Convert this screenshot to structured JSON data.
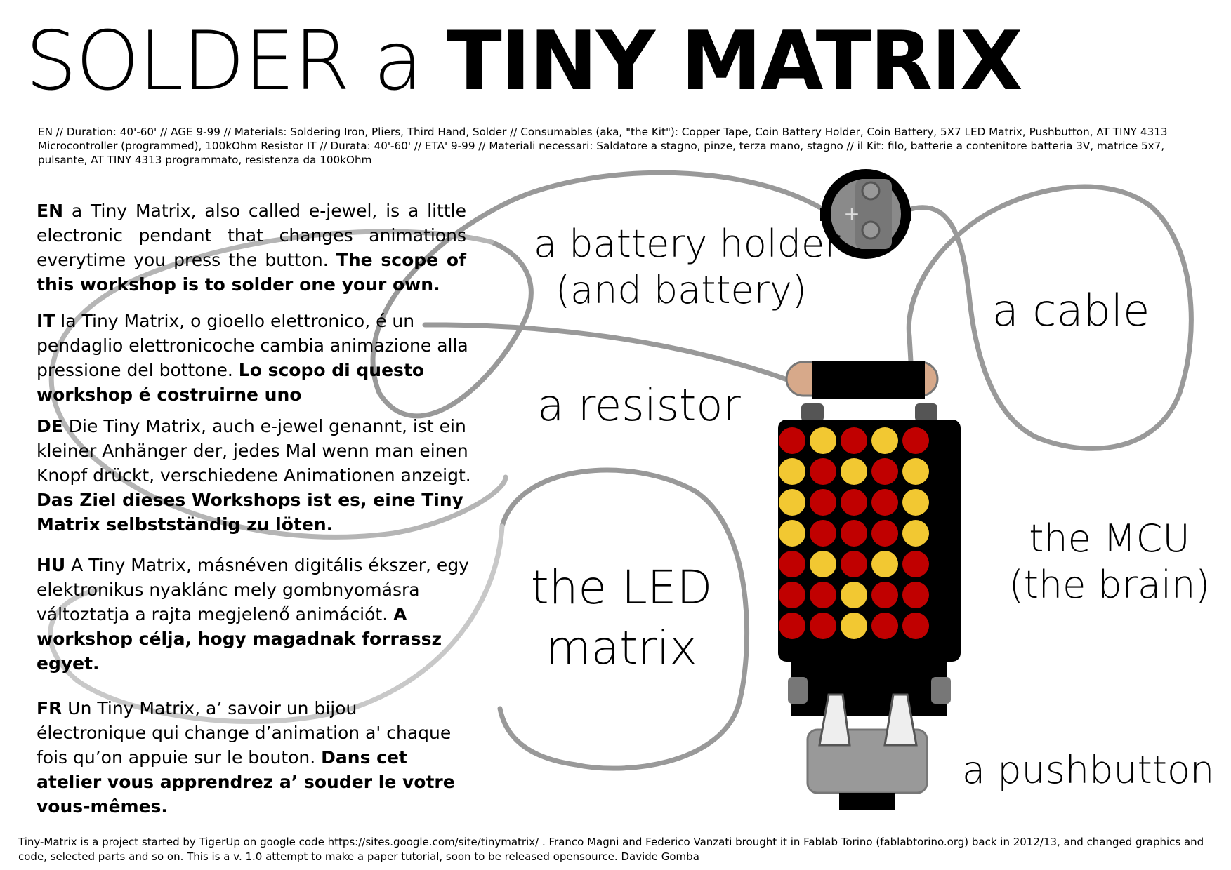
{
  "title": {
    "light": "SOLDER a ",
    "bold": "TINY MATRIX"
  },
  "meta": "EN // Duration:  40'-60' // AGE 9-99 // Materials: Soldering Iron, Pliers, Third Hand, Solder // Consumables (aka, \"the Kit\"): Copper Tape, Coin Battery Holder, Coin Battery,  5X7 LED Matrix,  Pushbutton, AT TINY 4313 Microcontroller (programmed), 100kOhm Resistor IT // Durata: 40'-60' // ETA' 9-99  // Materiali necessari: Saldatore a stagno, pinze, terza mano, stagno // il Kit: filo, batterie a contenitore batteria 3V, matrice 5x7, pulsante, AT TINY 4313 programmato, resistenza da 100kOhm",
  "paragraphs": {
    "en": {
      "lang": "EN",
      "text": " a Tiny Matrix, also called e-jewel, is a little electronic pendant that changes animations everytime you press the button. ",
      "bold": "The scope of this workshop is to solder one your own."
    },
    "it": {
      "lang": "IT",
      "text": " la Tiny Matrix, o gioello elettronico, é un pendaglio elettronicoche cambia animazione alla pressione del bottone. ",
      "bold": "Lo scopo di questo workshop é costruirne uno"
    },
    "de": {
      "lang": "DE",
      "text": " Die Tiny Matrix, auch e-jewel genannt, ist ein kleiner Anhänger der, jedes Mal wenn man einen Knopf drückt, verschiedene Animationen anzeigt. ",
      "bold": "Das Ziel dieses Workshops ist es, eine Tiny Matrix selbstständig zu löten."
    },
    "hu": {
      "lang": "HU",
      "text": " A Tiny Matrix, másnéven digitális ékszer, egy elektronikus nyaklánc mely gombnyomásra változtatja a rajta megjelenő animációt. ",
      "bold": "A workshop célja, hogy magadnak forrassz egyet."
    },
    "fr": {
      "lang": "FR",
      "text": " Un Tiny Matrix, a’ savoir un bijou électronique qui change d’animation a' chaque fois qu’on appuie sur le bouton. ",
      "bold": "Dans cet atelier vous apprendrez a’ souder le votre vous-mêmes."
    }
  },
  "labels": {
    "battery_1": "a battery holder",
    "battery_2": "(and battery)",
    "cable": "a cable",
    "resistor": "a resistor",
    "led_1": "the LED",
    "led_2": "matrix",
    "mcu_1": "the MCU",
    "mcu_2": "(the brain)",
    "pushbutton": "a pushbutton"
  },
  "battery_plus": "+",
  "footer": "Tiny-Matrix  is a project started by TigerUp on google code https://sites.google.com/site/tinymatrix/ . Franco Magni and Federico Vanzati  brought it in Fablab Torino (fablabtorino.org) back in 2012/13, and changed graphics and code, selected parts and so on. This is a v. 1.0 attempt to make a paper tutorial, soon to be released opensource. Davide Gomba",
  "colors": {
    "led_red": "#c00000",
    "led_yellow": "#f2c832",
    "cable": "#999999",
    "board": "#000000"
  },
  "matrix": {
    "rows": [
      [
        "R",
        "Y",
        "R",
        "Y",
        "R"
      ],
      [
        "Y",
        "R",
        "Y",
        "R",
        "Y"
      ],
      [
        "Y",
        "R",
        "R",
        "R",
        "Y"
      ],
      [
        "Y",
        "R",
        "R",
        "R",
        "Y"
      ],
      [
        "R",
        "Y",
        "R",
        "Y",
        "R"
      ],
      [
        "R",
        "R",
        "Y",
        "R",
        "R"
      ],
      [
        "R",
        "R",
        "Y",
        "R",
        "R"
      ]
    ]
  }
}
